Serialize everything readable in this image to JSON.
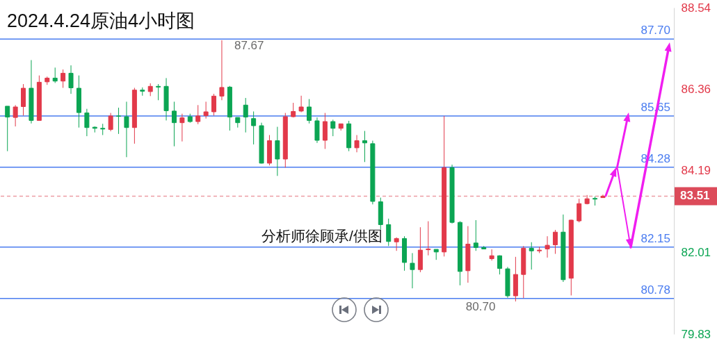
{
  "chart_data": {
    "type": "candlestick",
    "title": "2024.4.24原油4小时图",
    "categories": [
      null,
      null,
      null,
      null,
      null,
      null,
      null,
      null,
      null,
      null,
      null,
      null,
      null,
      null,
      null,
      null,
      null,
      null,
      null,
      null,
      null,
      null,
      null,
      null,
      null,
      null,
      null,
      null,
      null,
      null,
      null,
      null,
      null,
      null,
      null,
      null,
      null,
      null,
      null,
      null,
      null,
      null,
      null,
      null,
      null,
      null,
      null,
      null,
      null,
      null,
      null,
      null,
      null,
      null,
      null,
      null,
      null,
      null,
      null,
      null,
      null,
      null,
      null,
      null,
      null,
      null,
      null,
      null,
      null,
      null,
      null,
      null,
      null,
      null,
      null,
      null,
      null,
      null,
      null,
      null,
      null,
      null,
      null,
      null
    ],
    "ohlc": [
      [
        85.91,
        85.91,
        84.71,
        85.62
      ],
      [
        85.61,
        85.94,
        85.37,
        85.89
      ],
      [
        85.9,
        86.5,
        85.66,
        86.39
      ],
      [
        86.39,
        87.14,
        85.45,
        85.53
      ],
      [
        85.53,
        86.73,
        85.53,
        86.55
      ],
      [
        86.56,
        86.7,
        86.48,
        86.66
      ],
      [
        86.66,
        86.94,
        86.53,
        86.58
      ],
      [
        86.58,
        86.89,
        86.4,
        86.79
      ],
      [
        86.79,
        87.0,
        86.24,
        86.4
      ],
      [
        86.39,
        86.73,
        85.34,
        85.74
      ],
      [
        85.73,
        85.84,
        85.11,
        85.34
      ],
      [
        85.35,
        85.37,
        85.21,
        85.32
      ],
      [
        85.32,
        85.44,
        85.14,
        85.3
      ],
      [
        85.29,
        85.73,
        85.24,
        85.65
      ],
      [
        85.65,
        85.87,
        85.17,
        85.64
      ],
      [
        85.63,
        86.03,
        84.55,
        85.34
      ],
      [
        85.34,
        86.4,
        84.91,
        86.34
      ],
      [
        86.34,
        86.41,
        86.19,
        86.31
      ],
      [
        86.3,
        86.52,
        86.18,
        86.44
      ],
      [
        86.44,
        86.5,
        86.07,
        86.42
      ],
      [
        86.44,
        86.66,
        85.53,
        85.79
      ],
      [
        85.78,
        86.03,
        84.84,
        85.47
      ],
      [
        85.47,
        85.71,
        84.97,
        85.6
      ],
      [
        85.63,
        85.71,
        85.47,
        85.5
      ],
      [
        85.5,
        85.94,
        85.43,
        85.65
      ],
      [
        85.66,
        86.03,
        85.58,
        85.76
      ],
      [
        85.76,
        86.24,
        85.66,
        86.18
      ],
      [
        86.18,
        87.67,
        86.07,
        86.41
      ],
      [
        86.42,
        86.45,
        85.26,
        85.62
      ],
      [
        85.61,
        85.61,
        85.34,
        85.47
      ],
      [
        85.94,
        86.13,
        85.21,
        85.62
      ],
      [
        85.58,
        85.77,
        84.89,
        85.39
      ],
      [
        85.39,
        85.47,
        84.38,
        84.39
      ],
      [
        84.39,
        85.14,
        84.33,
        84.99
      ],
      [
        84.99,
        85.36,
        84.05,
        84.5
      ],
      [
        84.5,
        85.73,
        84.27,
        85.63
      ],
      [
        85.63,
        86.0,
        85.61,
        85.77
      ],
      [
        85.78,
        86.19,
        85.75,
        85.89
      ],
      [
        85.89,
        86.1,
        85.45,
        85.53
      ],
      [
        85.52,
        85.61,
        84.93,
        85.0
      ],
      [
        85.0,
        85.73,
        84.77,
        85.5
      ],
      [
        85.5,
        85.55,
        85.11,
        85.32
      ],
      [
        85.32,
        85.44,
        85.26,
        85.44
      ],
      [
        85.44,
        85.52,
        84.71,
        84.8
      ],
      [
        84.8,
        85.14,
        84.68,
        84.99
      ],
      [
        84.99,
        85.25,
        84.42,
        84.93
      ],
      [
        84.91,
        84.99,
        83.29,
        83.37
      ],
      [
        83.36,
        83.47,
        82.62,
        82.75
      ],
      [
        82.75,
        82.91,
        82.18,
        82.3
      ],
      [
        82.29,
        82.41,
        82.05,
        82.38
      ],
      [
        82.38,
        82.44,
        81.52,
        81.74
      ],
      [
        81.72,
        81.99,
        81.05,
        81.55
      ],
      [
        81.55,
        82.68,
        81.48,
        82.07
      ],
      [
        82.08,
        82.84,
        81.93,
        82.1
      ],
      [
        82.09,
        82.09,
        81.81,
        82.02
      ],
      [
        82.02,
        85.65,
        81.9,
        84.27
      ],
      [
        84.27,
        84.35,
        82.78,
        82.81
      ],
      [
        82.81,
        82.84,
        81.13,
        81.5
      ],
      [
        81.52,
        82.71,
        81.2,
        82.23
      ],
      [
        82.26,
        82.87,
        82.05,
        82.14
      ],
      [
        82.14,
        82.18,
        82.1,
        82.1
      ],
      [
        81.84,
        82.09,
        81.79,
        81.92
      ],
      [
        81.92,
        81.93,
        81.42,
        81.58
      ],
      [
        81.57,
        81.62,
        80.8,
        80.85
      ],
      [
        80.85,
        81.89,
        80.7,
        81.42
      ],
      [
        81.42,
        82.18,
        80.79,
        82.12
      ],
      [
        82.12,
        82.28,
        81.55,
        82.05
      ],
      [
        82.05,
        82.16,
        81.99,
        82.07
      ],
      [
        82.1,
        82.44,
        81.87,
        82.2
      ],
      [
        82.21,
        82.61,
        81.97,
        82.55
      ],
      [
        82.55,
        83.02,
        81.22,
        81.28
      ],
      [
        81.32,
        82.88,
        80.86,
        82.87
      ],
      [
        82.85,
        83.44,
        82.81,
        83.31
      ],
      [
        83.31,
        83.54,
        83.29,
        83.44
      ],
      [
        83.45,
        83.5,
        83.26,
        83.43
      ],
      [
        83.47,
        83.55,
        83.47,
        83.51
      ],
      null,
      null,
      null,
      null,
      null,
      null,
      null,
      null
    ],
    "colors": [
      "#0ba553",
      "#e2394a",
      "#e2394a",
      "#0ba553",
      "#e2394a",
      "#e2394a",
      "#0ba553",
      "#e2394a",
      "#0ba553",
      "#0ba553",
      "#0ba553",
      "#0ba553",
      "#0ba553",
      "#e2394a",
      "#0ba553",
      "#0ba553",
      "#e2394a",
      "#0ba553",
      "#e2394a",
      "#0ba553",
      "#0ba553",
      "#0ba553",
      "#e2394a",
      "#0ba553",
      "#e2394a",
      "#e2394a",
      "#e2394a",
      "#e2394a",
      "#0ba553",
      "#0ba553",
      "#0ba553",
      "#0ba553",
      "#0ba553",
      "#e2394a",
      "#0ba553",
      "#e2394a",
      "#e2394a",
      "#e2394a",
      "#0ba553",
      "#0ba553",
      "#e2394a",
      "#0ba553",
      "#e2394a",
      "#0ba553",
      "#e2394a",
      "#0ba553",
      "#0ba553",
      "#0ba553",
      "#0ba553",
      "#e2394a",
      "#0ba553",
      "#0ba553",
      "#e2394a",
      "#e2394a",
      "#0ba553",
      "#e2394a",
      "#0ba553",
      "#0ba553",
      "#e2394a",
      "#0ba553",
      "#0ba553",
      "#e2394a",
      "#0ba553",
      "#0ba553",
      "#e2394a",
      "#e2394a",
      "#0ba553",
      "#e2394a",
      "#e2394a",
      "#e2394a",
      "#0ba553",
      "#e2394a",
      "#e2394a",
      "#e2394a",
      "#0ba553",
      "#e2394a",
      null,
      null,
      null,
      null,
      null,
      null,
      null,
      null
    ],
    "ylim": [
      79.83,
      88.54
    ],
    "yticks": [
      88.54,
      86.36,
      84.19,
      82.01,
      79.83
    ],
    "ref_lines": [
      {
        "axis": "y",
        "value": 87.7,
        "label": "87.70",
        "color": "#4a7cf0"
      },
      {
        "axis": "y",
        "value": 85.65,
        "label": "85.65",
        "color": "#4a7cf0"
      },
      {
        "axis": "y",
        "value": 84.28,
        "label": "84.28",
        "color": "#4a7cf0"
      },
      {
        "axis": "y",
        "value": 82.15,
        "label": "82.15",
        "color": "#4a7cf0"
      },
      {
        "axis": "y",
        "value": 80.78,
        "label": "80.78",
        "color": "#4a7cf0"
      },
      {
        "axis": "y",
        "value": 83.51,
        "label": "83.51",
        "color": "#dc4b5a",
        "line_style": "dashed"
      }
    ],
    "annotations": [
      "分析师徐顾承/供图",
      {
        "text": "87.67",
        "y": 87.67
      },
      {
        "text": "80.70",
        "y": 80.7
      }
    ]
  }
}
